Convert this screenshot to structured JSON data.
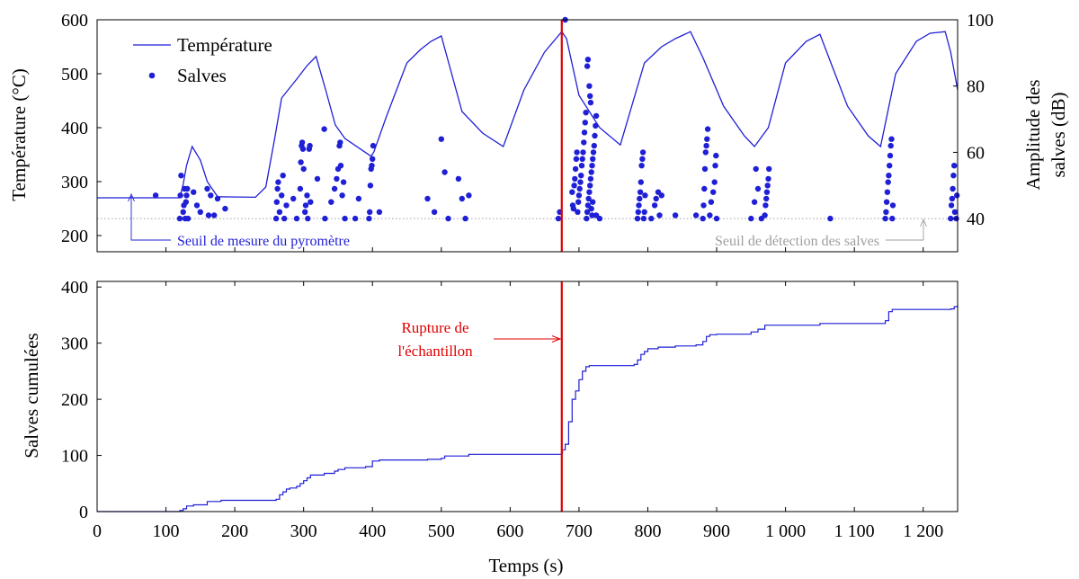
{
  "chart_data": [
    {
      "type": "line+scatter",
      "xlim": [
        0,
        1250
      ],
      "ylim_left": [
        170,
        600
      ],
      "ylim_right": [
        30,
        100
      ],
      "ylabel_left": "Température (°C)",
      "ylabel_right": [
        "Amplitude des",
        "salves (dB)"
      ],
      "yticks_left": [
        200,
        300,
        400,
        500,
        600
      ],
      "yticks_right": [
        40,
        60,
        80,
        100
      ],
      "legend": {
        "placement": "top-left",
        "entries": [
          {
            "label": "Température",
            "marker": "line",
            "color": "#1f1fd6"
          },
          {
            "label": "Salves",
            "marker": "dot",
            "color": "#1f1fd6"
          }
        ]
      },
      "series": [
        {
          "name": "Température",
          "axis": "left",
          "x": [
            0,
            120,
            125,
            130,
            138,
            150,
            160,
            175,
            230,
            245,
            258,
            268,
            290,
            305,
            318,
            332,
            346,
            360,
            398,
            402,
            420,
            450,
            470,
            485,
            500,
            515,
            530,
            560,
            590,
            620,
            650,
            675,
            682,
            700,
            730,
            760,
            795,
            820,
            840,
            862,
            880,
            910,
            940,
            955,
            975,
            1000,
            1030,
            1050,
            1060,
            1090,
            1120,
            1138,
            1160,
            1190,
            1210,
            1232,
            1240,
            1250
          ],
          "y": [
            270,
            270,
            295,
            330,
            365,
            340,
            300,
            272,
            271,
            290,
            380,
            455,
            490,
            515,
            532,
            470,
            405,
            380,
            347,
            355,
            420,
            520,
            545,
            560,
            570,
            500,
            430,
            390,
            365,
            470,
            540,
            578,
            565,
            460,
            400,
            368,
            520,
            550,
            565,
            578,
            530,
            440,
            385,
            365,
            400,
            520,
            560,
            573,
            540,
            440,
            385,
            365,
            500,
            560,
            575,
            578,
            540,
            470
          ]
        },
        {
          "name": "Salves",
          "axis": "right",
          "points": [
            [
              85,
              47
            ],
            [
              120,
              40
            ],
            [
              121,
              47
            ],
            [
              122,
              53
            ],
            [
              125,
              42
            ],
            [
              126,
              44
            ],
            [
              127,
              49
            ],
            [
              128,
              40
            ],
            [
              129,
              45
            ],
            [
              130,
              47
            ],
            [
              131,
              49
            ],
            [
              132,
              40
            ],
            [
              140,
              48
            ],
            [
              145,
              44
            ],
            [
              150,
              42
            ],
            [
              160,
              49
            ],
            [
              162,
              41
            ],
            [
              165,
              47
            ],
            [
              170,
              41
            ],
            [
              175,
              46
            ],
            [
              186,
              43
            ],
            [
              260,
              40
            ],
            [
              261,
              45
            ],
            [
              262,
              49
            ],
            [
              263,
              51
            ],
            [
              265,
              42
            ],
            [
              268,
              47
            ],
            [
              270,
              53
            ],
            [
              272,
              40
            ],
            [
              275,
              44
            ],
            [
              285,
              46
            ],
            [
              290,
              40
            ],
            [
              295,
              49
            ],
            [
              296,
              57
            ],
            [
              297,
              62
            ],
            [
              298,
              63
            ],
            [
              299,
              61
            ],
            [
              300,
              55
            ],
            [
              302,
              42
            ],
            [
              303,
              44
            ],
            [
              305,
              47
            ],
            [
              306,
              40
            ],
            [
              308,
              61
            ],
            [
              309,
              62
            ],
            [
              310,
              45
            ],
            [
              320,
              52
            ],
            [
              330,
              67
            ],
            [
              331,
              40
            ],
            [
              340,
              45
            ],
            [
              345,
              49
            ],
            [
              348,
              52
            ],
            [
              350,
              55
            ],
            [
              352,
              62
            ],
            [
              353,
              63
            ],
            [
              354,
              56
            ],
            [
              356,
              47
            ],
            [
              358,
              51
            ],
            [
              360,
              40
            ],
            [
              375,
              40
            ],
            [
              380,
              46
            ],
            [
              395,
              40
            ],
            [
              396,
              42
            ],
            [
              397,
              50
            ],
            [
              398,
              55
            ],
            [
              399,
              56
            ],
            [
              400,
              58
            ],
            [
              401,
              62
            ],
            [
              410,
              42
            ],
            [
              480,
              46
            ],
            [
              490,
              42
            ],
            [
              500,
              64
            ],
            [
              505,
              54
            ],
            [
              510,
              40
            ],
            [
              525,
              52
            ],
            [
              530,
              46
            ],
            [
              535,
              40
            ],
            [
              540,
              47
            ],
            [
              670,
              40
            ],
            [
              672,
              42
            ],
            [
              680,
              100
            ],
            [
              690,
              48
            ],
            [
              691,
              44
            ],
            [
              692,
              43
            ],
            [
              693,
              50
            ],
            [
              694,
              52
            ],
            [
              695,
              55
            ],
            [
              696,
              58
            ],
            [
              697,
              60
            ],
            [
              698,
              42
            ],
            [
              699,
              45
            ],
            [
              700,
              47
            ],
            [
              701,
              49
            ],
            [
              702,
              51
            ],
            [
              703,
              53
            ],
            [
              704,
              56
            ],
            [
              705,
              58
            ],
            [
              706,
              60
            ],
            [
              707,
              63
            ],
            [
              708,
              66
            ],
            [
              709,
              69
            ],
            [
              710,
              72
            ],
            [
              711,
              40
            ],
            [
              712,
              42
            ],
            [
              713,
              44
            ],
            [
              714,
              46
            ],
            [
              715,
              48
            ],
            [
              716,
              50
            ],
            [
              717,
              52
            ],
            [
              718,
              54
            ],
            [
              719,
              56
            ],
            [
              720,
              58
            ],
            [
              721,
              60
            ],
            [
              722,
              62
            ],
            [
              723,
              65
            ],
            [
              724,
              68
            ],
            [
              725,
              71
            ],
            [
              712,
              86
            ],
            [
              713,
              88
            ],
            [
              715,
              80
            ],
            [
              716,
              77
            ],
            [
              717,
              75
            ],
            [
              718,
              43
            ],
            [
              719,
              41
            ],
            [
              720,
              45
            ],
            [
              725,
              41
            ],
            [
              730,
              40
            ],
            [
              785,
              40
            ],
            [
              786,
              42
            ],
            [
              787,
              44
            ],
            [
              788,
              46
            ],
            [
              789,
              48
            ],
            [
              790,
              51
            ],
            [
              791,
              56
            ],
            [
              792,
              58
            ],
            [
              793,
              60
            ],
            [
              794,
              40
            ],
            [
              795,
              42
            ],
            [
              796,
              47
            ],
            [
              805,
              40
            ],
            [
              810,
              44
            ],
            [
              812,
              46
            ],
            [
              815,
              48
            ],
            [
              817,
              41
            ],
            [
              820,
              47
            ],
            [
              840,
              41
            ],
            [
              870,
              41
            ],
            [
              880,
              40
            ],
            [
              881,
              44
            ],
            [
              882,
              49
            ],
            [
              883,
              55
            ],
            [
              884,
              60
            ],
            [
              885,
              62
            ],
            [
              886,
              64
            ],
            [
              887,
              67
            ],
            [
              890,
              41
            ],
            [
              892,
              45
            ],
            [
              895,
              48
            ],
            [
              897,
              51
            ],
            [
              898,
              56
            ],
            [
              899,
              59
            ],
            [
              900,
              40
            ],
            [
              950,
              40
            ],
            [
              955,
              45
            ],
            [
              957,
              55
            ],
            [
              960,
              49
            ],
            [
              965,
              40
            ],
            [
              970,
              41
            ],
            [
              971,
              44
            ],
            [
              972,
              46
            ],
            [
              973,
              48
            ],
            [
              974,
              50
            ],
            [
              975,
              52
            ],
            [
              976,
              55
            ],
            [
              1065,
              40
            ],
            [
              1145,
              40
            ],
            [
              1146,
              42
            ],
            [
              1147,
              45
            ],
            [
              1148,
              48
            ],
            [
              1149,
              51
            ],
            [
              1150,
              53
            ],
            [
              1151,
              56
            ],
            [
              1152,
              59
            ],
            [
              1153,
              62
            ],
            [
              1154,
              64
            ],
            [
              1155,
              40
            ],
            [
              1156,
              44
            ],
            [
              1240,
              40
            ],
            [
              1241,
              44
            ],
            [
              1242,
              46
            ],
            [
              1243,
              49
            ],
            [
              1244,
              53
            ],
            [
              1245,
              56
            ],
            [
              1246,
              42
            ],
            [
              1248,
              40
            ],
            [
              1249,
              47
            ]
          ]
        }
      ],
      "detection_threshold_db": 40,
      "annotations": [
        {
          "text": "Seuil de mesure du pyromètre",
          "color": "#1f1fd6"
        },
        {
          "text": "Seuil de détection des salves",
          "color": "#9e9e9e"
        }
      ]
    },
    {
      "type": "line",
      "xlim": [
        0,
        1250
      ],
      "ylim": [
        0,
        410
      ],
      "xlabel": "Temps (s)",
      "ylabel": "Salves cumulées",
      "xticks": [
        0,
        100,
        200,
        300,
        400,
        500,
        600,
        700,
        800,
        900,
        1000,
        1100,
        1200
      ],
      "xtick_labels": [
        "0",
        "100",
        "200",
        "300",
        "400",
        "500",
        "600",
        "700",
        "800",
        "900",
        "1 000",
        "1 100",
        "1 200"
      ],
      "yticks": [
        0,
        100,
        200,
        300,
        400
      ],
      "series": [
        {
          "name": "Salves cumulées",
          "x": [
            0,
            85,
            120,
            125,
            130,
            140,
            160,
            180,
            260,
            265,
            270,
            275,
            280,
            290,
            295,
            300,
            305,
            310,
            330,
            345,
            350,
            360,
            390,
            400,
            410,
            480,
            500,
            505,
            540,
            675,
            676,
            680,
            685,
            690,
            695,
            700,
            705,
            710,
            715,
            720,
            780,
            785,
            790,
            795,
            800,
            815,
            840,
            870,
            880,
            885,
            890,
            900,
            950,
            960,
            970,
            1050,
            1145,
            1150,
            1155,
            1240,
            1245,
            1250
          ],
          "y": [
            0,
            0,
            2,
            5,
            10,
            12,
            18,
            20,
            22,
            30,
            35,
            40,
            42,
            45,
            50,
            55,
            60,
            65,
            68,
            72,
            75,
            78,
            80,
            90,
            92,
            93,
            95,
            99,
            102,
            104,
            110,
            120,
            160,
            200,
            215,
            235,
            250,
            258,
            260,
            260,
            262,
            270,
            280,
            285,
            290,
            293,
            295,
            297,
            303,
            312,
            315,
            316,
            320,
            325,
            332,
            335,
            340,
            356,
            360,
            361,
            365,
            368
          ]
        }
      ],
      "annotations": [
        {
          "text": [
            "Rupture de",
            "l'échantillon"
          ],
          "color": "#e00000"
        }
      ]
    }
  ],
  "event": {
    "rupture_time_s": 675,
    "color": "#e00000"
  },
  "colors": {
    "series": "#1f1fd6",
    "event": "#e00000",
    "threshold": "#a0a0a0"
  }
}
